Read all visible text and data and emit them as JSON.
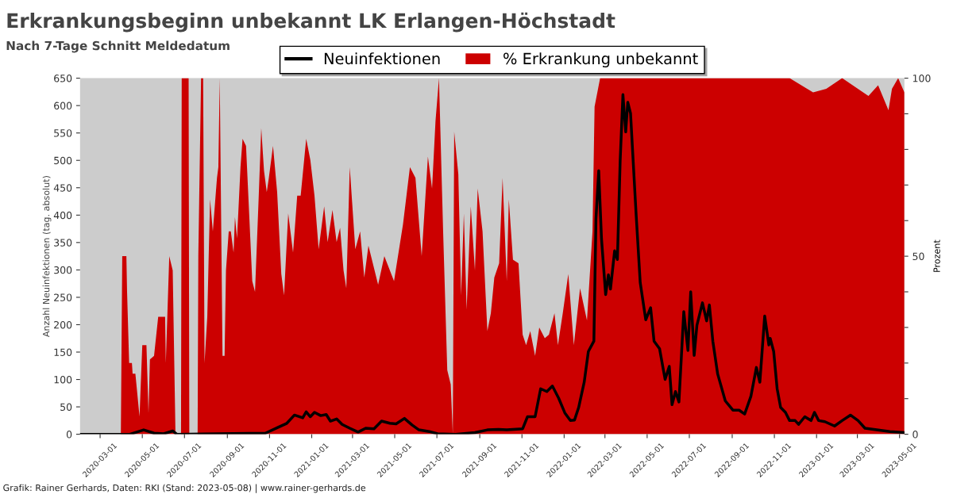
{
  "chart_data": {
    "type": "area",
    "title": "Erkrankungsbeginn unbekannt LK Erlangen-Höchstadt",
    "subtitle": "Nach 7-Tage Schnitt Meldedatum",
    "ylabel": "Anzahl Neuinfektionen (tag. absolut)",
    "y2label": "Prozent",
    "annotations": [
      "Grafik: Rainer Gerhards, Daten: RKI (Stand: 2023-05-08) | www.rainer-gerhards.de"
    ],
    "xlim": [
      "2020-02-01",
      "2023-05-08"
    ],
    "ylim": [
      0,
      650
    ],
    "yticks": [
      0,
      50,
      100,
      150,
      200,
      250,
      300,
      350,
      400,
      450,
      500,
      550,
      600,
      650
    ],
    "y2lim": [
      0,
      100
    ],
    "y2ticks": [
      0,
      {
        "value": 10,
        "label": null
      },
      {
        "value": 20,
        "label": null
      },
      {
        "value": 30,
        "label": null
      },
      {
        "value": 40,
        "label": null
      },
      50,
      {
        "value": 60,
        "label": null
      },
      {
        "value": 70,
        "label": null
      },
      {
        "value": 80,
        "label": null
      },
      {
        "value": 90,
        "label": null
      },
      100
    ],
    "xticks": [
      "2020-03-01",
      "2020-05-01",
      "2020-07-01",
      "2020-09-01",
      "2020-11-01",
      "2021-01-01",
      "2021-03-01",
      "2021-05-01",
      "2021-07-01",
      "2021-09-01",
      "2021-11-01",
      "2022-01-01",
      "2022-03-01",
      "2022-05-01",
      "2022-07-01",
      "2022-09-01",
      "2022-11-01",
      "2023-01-01",
      "2023-03-01",
      "2023-05-01"
    ],
    "grid": false,
    "legend": "top",
    "series": [
      {
        "name": "% Erkrankung unbekannt",
        "axis": "y2",
        "color": "#cc0000",
        "x": [
          "2020-02-01",
          "2020-03-31",
          "2020-04-02",
          "2020-04-08",
          "2020-04-09",
          "2020-04-12",
          "2020-04-16",
          "2020-04-17",
          "2020-04-21",
          "2020-04-27",
          "2020-05-01",
          "2020-05-07",
          "2020-05-10",
          "2020-05-12",
          "2020-05-18",
          "2020-05-24",
          "2020-06-03",
          "2020-06-04",
          "2020-06-09",
          "2020-06-14",
          "2020-06-18",
          "2020-06-26",
          "2020-06-27",
          "2020-07-07",
          "2020-07-08",
          "2020-07-20",
          "2020-07-21",
          "2020-07-25",
          "2020-07-28",
          "2020-07-30",
          "2020-08-03",
          "2020-08-05",
          "2020-08-07",
          "2020-08-11",
          "2020-08-17",
          "2020-08-19",
          "2020-08-21",
          "2020-08-25",
          "2020-08-28",
          "2020-08-30",
          "2020-09-03",
          "2020-09-06",
          "2020-09-10",
          "2020-09-12",
          "2020-09-15",
          "2020-09-20",
          "2020-09-23",
          "2020-09-28",
          "2020-10-03",
          "2020-10-07",
          "2020-10-11",
          "2020-10-16",
          "2020-10-20",
          "2020-10-24",
          "2020-10-28",
          "2020-10-31",
          "2020-11-06",
          "2020-11-12",
          "2020-11-18",
          "2020-11-22",
          "2020-11-28",
          "2020-12-05",
          "2020-12-11",
          "2020-12-16",
          "2020-12-24",
          "2020-12-30",
          "2021-01-05",
          "2021-01-11",
          "2021-01-19",
          "2021-01-24",
          "2021-01-31",
          "2021-02-06",
          "2021-02-11",
          "2021-02-16",
          "2021-02-20",
          "2021-02-25",
          "2021-03-05",
          "2021-03-12",
          "2021-03-18",
          "2021-03-24",
          "2021-04-07",
          "2021-04-16",
          "2021-04-30",
          "2021-05-13",
          "2021-05-23",
          "2021-05-31",
          "2021-06-09",
          "2021-06-18",
          "2021-06-24",
          "2021-06-29",
          "2021-07-04",
          "2021-07-10",
          "2021-07-16",
          "2021-07-21",
          "2021-07-24",
          "2021-07-26",
          "2021-08-01",
          "2021-08-05",
          "2021-08-09",
          "2021-08-13",
          "2021-08-19",
          "2021-08-25",
          "2021-08-29",
          "2021-09-05",
          "2021-09-12",
          "2021-09-17",
          "2021-09-22",
          "2021-09-29",
          "2021-10-04",
          "2021-10-10",
          "2021-10-13",
          "2021-10-19",
          "2021-10-27",
          "2021-11-02",
          "2021-11-07",
          "2021-11-13",
          "2021-11-20",
          "2021-11-26",
          "2021-12-04",
          "2021-12-10",
          "2021-12-18",
          "2021-12-23",
          "2021-12-30",
          "2022-01-07",
          "2022-01-15",
          "2022-01-24",
          "2022-02-03",
          "2022-02-11",
          "2022-02-14",
          "2022-02-22",
          "2022-11-23",
          "2022-12-27",
          "2023-01-15",
          "2023-02-07",
          "2023-03-17",
          "2023-03-31",
          "2023-04-15",
          "2023-04-20",
          "2023-04-29",
          "2023-05-08"
        ],
        "values": [
          0,
          0,
          50,
          50,
          40,
          20,
          20,
          17,
          17,
          5,
          25,
          25,
          6,
          21,
          22,
          33,
          33,
          20,
          50,
          46,
          0,
          0,
          100,
          100,
          0,
          0,
          50,
          100,
          100,
          20,
          33,
          50,
          66,
          57,
          72,
          75,
          100,
          22,
          22,
          46,
          57,
          57,
          51,
          61,
          55,
          75,
          83,
          81,
          60,
          43,
          40,
          65,
          86,
          74,
          68,
          72,
          81,
          68,
          45,
          39,
          62,
          51,
          67,
          67,
          83,
          77,
          67,
          52,
          64,
          54,
          63,
          54,
          58,
          46,
          41,
          75,
          52,
          57,
          44,
          53,
          42,
          50,
          43,
          59,
          75,
          72,
          50,
          78,
          69,
          88,
          100,
          57,
          18,
          14,
          0,
          85,
          73,
          39,
          62,
          35,
          64,
          46,
          69,
          57,
          29,
          34,
          44,
          48,
          72,
          43,
          66,
          49,
          48,
          28,
          25,
          29,
          22,
          30,
          27,
          28,
          34,
          25,
          34,
          45,
          25,
          41,
          32,
          57,
          92,
          100,
          100,
          96,
          97,
          100,
          95,
          98,
          91,
          97,
          100,
          96
        ]
      },
      {
        "name": "Neuinfektionen",
        "type": "line",
        "color": "#000000",
        "x": [
          "2020-02-01",
          "2020-04-13",
          "2020-05-03",
          "2020-05-18",
          "2020-06-01",
          "2020-06-14",
          "2020-06-20",
          "2020-10-26",
          "2020-11-14",
          "2020-11-26",
          "2020-12-07",
          "2020-12-19",
          "2020-12-24",
          "2020-12-30",
          "2021-01-05",
          "2021-01-14",
          "2021-01-22",
          "2021-01-28",
          "2021-02-06",
          "2021-02-14",
          "2021-02-25",
          "2021-03-09",
          "2021-03-20",
          "2021-04-01",
          "2021-04-12",
          "2021-04-24",
          "2021-05-03",
          "2021-05-15",
          "2021-05-26",
          "2021-06-05",
          "2021-06-20",
          "2021-07-02",
          "2021-07-28",
          "2021-08-25",
          "2021-09-12",
          "2021-09-28",
          "2021-10-10",
          "2021-11-02",
          "2021-11-09",
          "2021-11-20",
          "2021-11-28",
          "2021-12-07",
          "2021-12-15",
          "2021-12-24",
          "2022-01-02",
          "2022-01-10",
          "2022-01-16",
          "2022-01-22",
          "2022-01-30",
          "2022-02-05",
          "2022-02-13",
          "2022-02-16",
          "2022-02-20",
          "2022-02-24",
          "2022-03-02",
          "2022-03-06",
          "2022-03-09",
          "2022-03-15",
          "2022-03-19",
          "2022-03-23",
          "2022-03-27",
          "2022-03-31",
          "2022-04-03",
          "2022-04-07",
          "2022-04-15",
          "2022-04-21",
          "2022-04-29",
          "2022-05-06",
          "2022-05-11",
          "2022-05-19",
          "2022-05-27",
          "2022-06-02",
          "2022-06-06",
          "2022-06-11",
          "2022-06-16",
          "2022-06-23",
          "2022-06-29",
          "2022-07-03",
          "2022-07-08",
          "2022-07-12",
          "2022-07-20",
          "2022-07-26",
          "2022-07-30",
          "2022-08-04",
          "2022-08-11",
          "2022-08-22",
          "2022-09-02",
          "2022-09-11",
          "2022-09-19",
          "2022-09-28",
          "2022-10-06",
          "2022-10-11",
          "2022-10-18",
          "2022-10-24",
          "2022-10-26",
          "2022-10-31",
          "2022-11-05",
          "2022-11-10",
          "2022-11-17",
          "2022-11-23",
          "2022-12-01",
          "2022-12-06",
          "2022-12-15",
          "2022-12-24",
          "2022-12-29",
          "2023-01-04",
          "2023-01-13",
          "2023-01-27",
          "2023-02-07",
          "2023-02-19",
          "2023-03-02",
          "2023-03-12",
          "2023-03-29",
          "2023-04-17",
          "2023-05-08"
        ],
        "values": [
          0,
          0,
          8,
          2,
          1,
          6,
          0,
          2,
          13,
          20,
          35,
          30,
          41,
          32,
          40,
          34,
          36,
          24,
          28,
          18,
          11,
          4,
          11,
          10,
          24,
          20,
          19,
          29,
          17,
          8,
          5,
          1,
          0,
          3,
          8,
          9,
          8,
          10,
          32,
          32,
          83,
          78,
          88,
          66,
          39,
          25,
          26,
          49,
          95,
          151,
          170,
          393,
          481,
          357,
          255,
          291,
          265,
          335,
          319,
          499,
          620,
          552,
          606,
          586,
          403,
          277,
          209,
          231,
          170,
          156,
          100,
          124,
          54,
          78,
          59,
          224,
          153,
          260,
          144,
          199,
          240,
          207,
          236,
          170,
          110,
          61,
          44,
          44,
          37,
          69,
          122,
          95,
          216,
          163,
          175,
          151,
          83,
          49,
          40,
          25,
          25,
          18,
          32,
          25,
          40,
          25,
          23,
          15,
          25,
          35,
          25,
          11,
          8,
          5,
          3
        ]
      }
    ]
  }
}
